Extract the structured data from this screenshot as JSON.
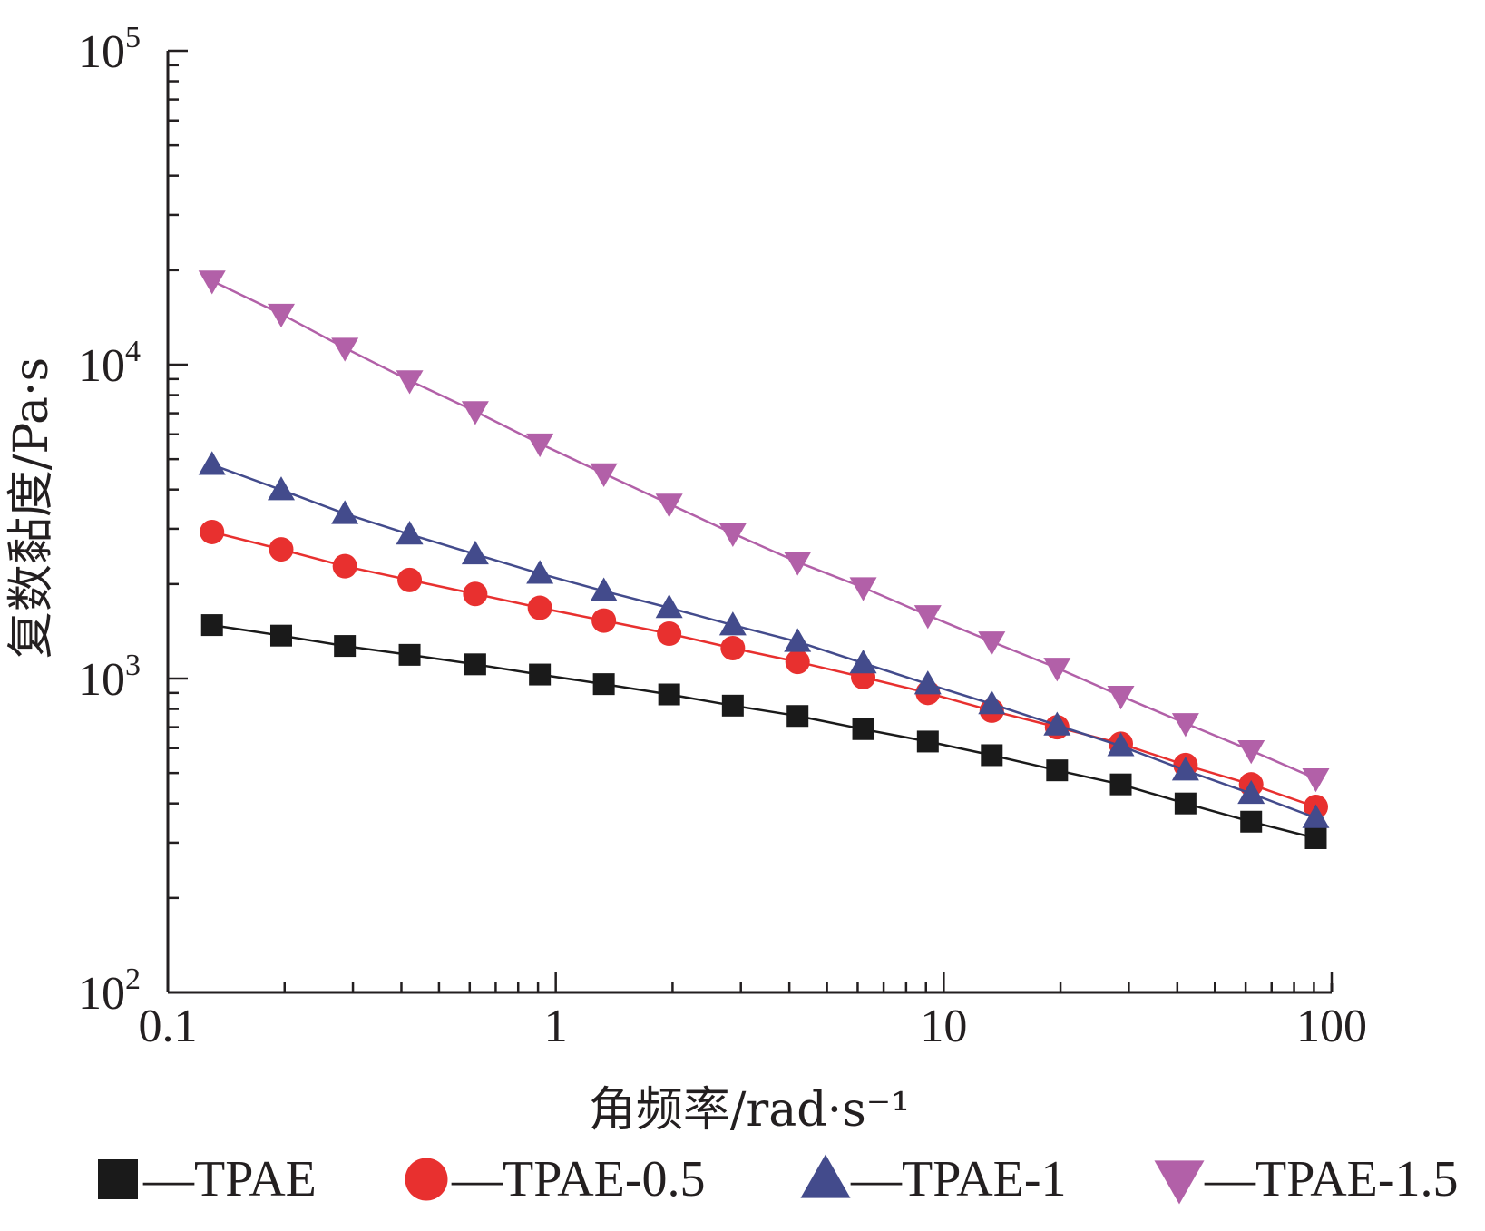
{
  "chart_data": {
    "type": "line",
    "xlabel": "角频率/rad·s⁻¹",
    "ylabel": "复数黏度/Pa·s",
    "x_scale": "log",
    "y_scale": "log",
    "xlim": [
      0.1,
      100
    ],
    "ylim": [
      100,
      100000
    ],
    "x_ticks": [
      {
        "value": 0.1,
        "label": "0.1"
      },
      {
        "value": 1,
        "label": "1"
      },
      {
        "value": 10,
        "label": "10"
      },
      {
        "value": 100,
        "label": "100"
      }
    ],
    "y_ticks": [
      {
        "value": 100,
        "base": "10",
        "exp": "2"
      },
      {
        "value": 1000,
        "base": "10",
        "exp": "3"
      },
      {
        "value": 10000,
        "base": "10",
        "exp": "4"
      },
      {
        "value": 100000,
        "base": "10",
        "exp": "5"
      }
    ],
    "grid": false,
    "legend_position": "bottom",
    "x": [
      0.13,
      0.196,
      0.286,
      0.42,
      0.62,
      0.91,
      1.33,
      1.96,
      2.86,
      4.2,
      6.2,
      9.1,
      13.3,
      19.6,
      28.6,
      42,
      62,
      91
    ],
    "series": [
      {
        "name": "—TPAE",
        "marker": "square",
        "color": "#1a1a1a",
        "values": [
          1480,
          1370,
          1270,
          1190,
          1110,
          1030,
          960,
          890,
          820,
          760,
          690,
          630,
          570,
          510,
          460,
          400,
          350,
          310
        ]
      },
      {
        "name": "—TPAE-0.5",
        "marker": "circle",
        "color": "#e8302f",
        "values": [
          2930,
          2580,
          2280,
          2060,
          1860,
          1680,
          1530,
          1390,
          1250,
          1130,
          1010,
          900,
          790,
          700,
          620,
          530,
          460,
          390
        ]
      },
      {
        "name": "—TPAE-1",
        "marker": "triangle-up",
        "color": "#434b8c",
        "values": [
          4800,
          3990,
          3350,
          2880,
          2490,
          2160,
          1900,
          1680,
          1480,
          1310,
          1120,
          960,
          830,
          710,
          610,
          510,
          430,
          360
        ]
      },
      {
        "name": "—TPAE-1.5",
        "marker": "triangle-down",
        "color": "#b260a8",
        "values": [
          18500,
          14500,
          11300,
          8900,
          7100,
          5600,
          4500,
          3600,
          2900,
          2350,
          1950,
          1590,
          1310,
          1080,
          880,
          720,
          590,
          480
        ]
      }
    ]
  }
}
